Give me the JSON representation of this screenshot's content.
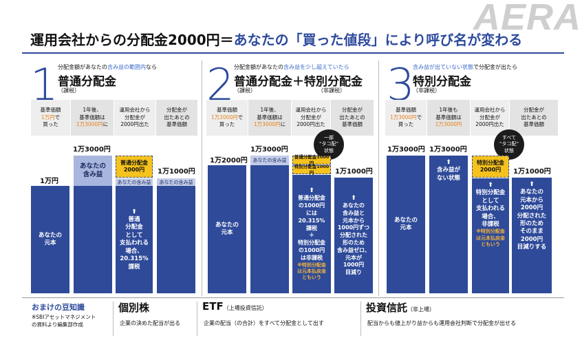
{
  "brand": "AERA",
  "title": {
    "part1": "運用会社からの分配金2000円＝",
    "part2": "あなたの「買った値段」により呼び名が変わる"
  },
  "panels": [
    {
      "num": "1",
      "cond_pre": "分配金額があなたの",
      "cond_hl": "含み益の範囲内",
      "cond_post": "なら",
      "title": "普通分配金",
      "sub": "（課税）",
      "headers": [
        {
          "l1": "基準価額",
          "l2": "1万円",
          "l3": "で",
          "l4": "買った"
        },
        {
          "l1": "1年後、",
          "l2": "基準価額は",
          "l3": "1万3000円",
          "l4": "に"
        },
        {
          "l1": "運用会社から",
          "l2": "分配金が",
          "l3": "2000円出た"
        },
        {
          "l1": "分配金が",
          "l2": "出たあとの",
          "l3": "基準価額"
        }
      ],
      "labels": [
        "1万円",
        "1万3000円",
        "1万1000円"
      ],
      "principal": [
        "あなたの",
        "元本"
      ],
      "gain": [
        "あなたの",
        "含み益"
      ],
      "dist_box": [
        "普通分配金",
        "2000円"
      ],
      "small_gain": "あなたの含み益",
      "desc": [
        "普通",
        "分配金",
        "として",
        "支払われる",
        "場合、",
        "20.315%",
        "課税"
      ]
    },
    {
      "num": "2",
      "cond_pre": "分配金額があなたの",
      "cond_hl": "含み益を少し超えていたら",
      "cond_post": "",
      "title": "普通分配金＋特別分配金",
      "sub1": "（課税）",
      "sub2": "（非課税）",
      "headers": [
        {
          "l1": "基準価額",
          "l2": "1万2000円",
          "l3": "で",
          "l4": "買った"
        },
        {
          "l1": "1年後、",
          "l2": "基準価額は",
          "l3": "1万3000円",
          "l4": "に"
        },
        {
          "l1": "運用会社から",
          "l2": "分配金が",
          "l3": "2000円出た"
        },
        {
          "l1": "分配金が",
          "l2": "出たあとの",
          "l3": "基準価額"
        }
      ],
      "labels": [
        "1万2000円",
        "1万3000円",
        "1万1000円"
      ],
      "principal": [
        "あなたの",
        "元本"
      ],
      "small_gain": "あなたの含み益",
      "box1": "普通分配金1000円",
      "box2": "特別分配金1000円",
      "circle": [
        "一部",
        "“タコ配”",
        "状態"
      ],
      "desc": [
        "普通分配金",
        "の1000円",
        "には",
        "20.315%",
        "課税",
        "＋",
        "特別分配金",
        "の1000円",
        "は非課税"
      ],
      "note": [
        "※特別分配金",
        "は元本払戻金",
        "ともいう"
      ],
      "desc2": [
        "あなたの",
        "含み益と",
        "元本から",
        "1000円ずつ",
        "分配された",
        "形のため",
        "含み益ゼロ、",
        "元本が",
        "1000円",
        "目減り"
      ]
    },
    {
      "num": "3",
      "cond_pre": "",
      "cond_hl": "含み益が出ていない状態",
      "cond_post": "で分配金が出たら",
      "title": "特別分配金",
      "sub": "（非課税）",
      "headers": [
        {
          "l1": "基準価額",
          "l2": "1万3000円",
          "l3": "で",
          "l4": "買った"
        },
        {
          "l1": "1年後も",
          "l2": "基準価額は",
          "l3": "1万3000円",
          "l4": ""
        },
        {
          "l1": "運用会社から",
          "l2": "分配金が",
          "l3": "2000円出た"
        },
        {
          "l1": "分配金が",
          "l2": "出たあとの",
          "l3": "基準価額"
        }
      ],
      "labels": [
        "1万3000円",
        "1万3000円",
        "1万1000円"
      ],
      "principal": [
        "あなたの",
        "元本"
      ],
      "nogain": [
        "含み益が",
        "ない状態"
      ],
      "dist_box": [
        "特別分配金",
        "2000円"
      ],
      "circle": [
        "すべて",
        "“タコ配”",
        "状態"
      ],
      "desc": [
        "特別分配金",
        "として",
        "支払われる",
        "場合、",
        "非課税"
      ],
      "note": [
        "※特別分配金",
        "は元本払戻金",
        "ともいう"
      ],
      "desc2": [
        "あなたの",
        "元本から",
        "2000円",
        "分配された",
        "形のため",
        "そのまま",
        "2000円",
        "目減りする"
      ]
    }
  ],
  "footer": {
    "trivia": "おまけの豆知識",
    "source": [
      "※SBIアセットマネジメント",
      "の資料より編集部作成"
    ],
    "c1_title": "個別株",
    "c1_desc": "企業の決めた配当が出る",
    "c2_title": "ETF",
    "c2_sub": "（上場投資信託）",
    "c2_desc": "企業の配当（の合計）をすべて分配金として出す",
    "c3_title": "投資信託",
    "c3_sub": "（非上場）",
    "c3_desc": "配当からも値上がり益からも運用会社判断で分配金が出せる"
  },
  "colors": {
    "blue": "#2e4a99",
    "orange": "#f5c21e",
    "light_blue": "#a8b6de",
    "accent": "#e8801a"
  }
}
